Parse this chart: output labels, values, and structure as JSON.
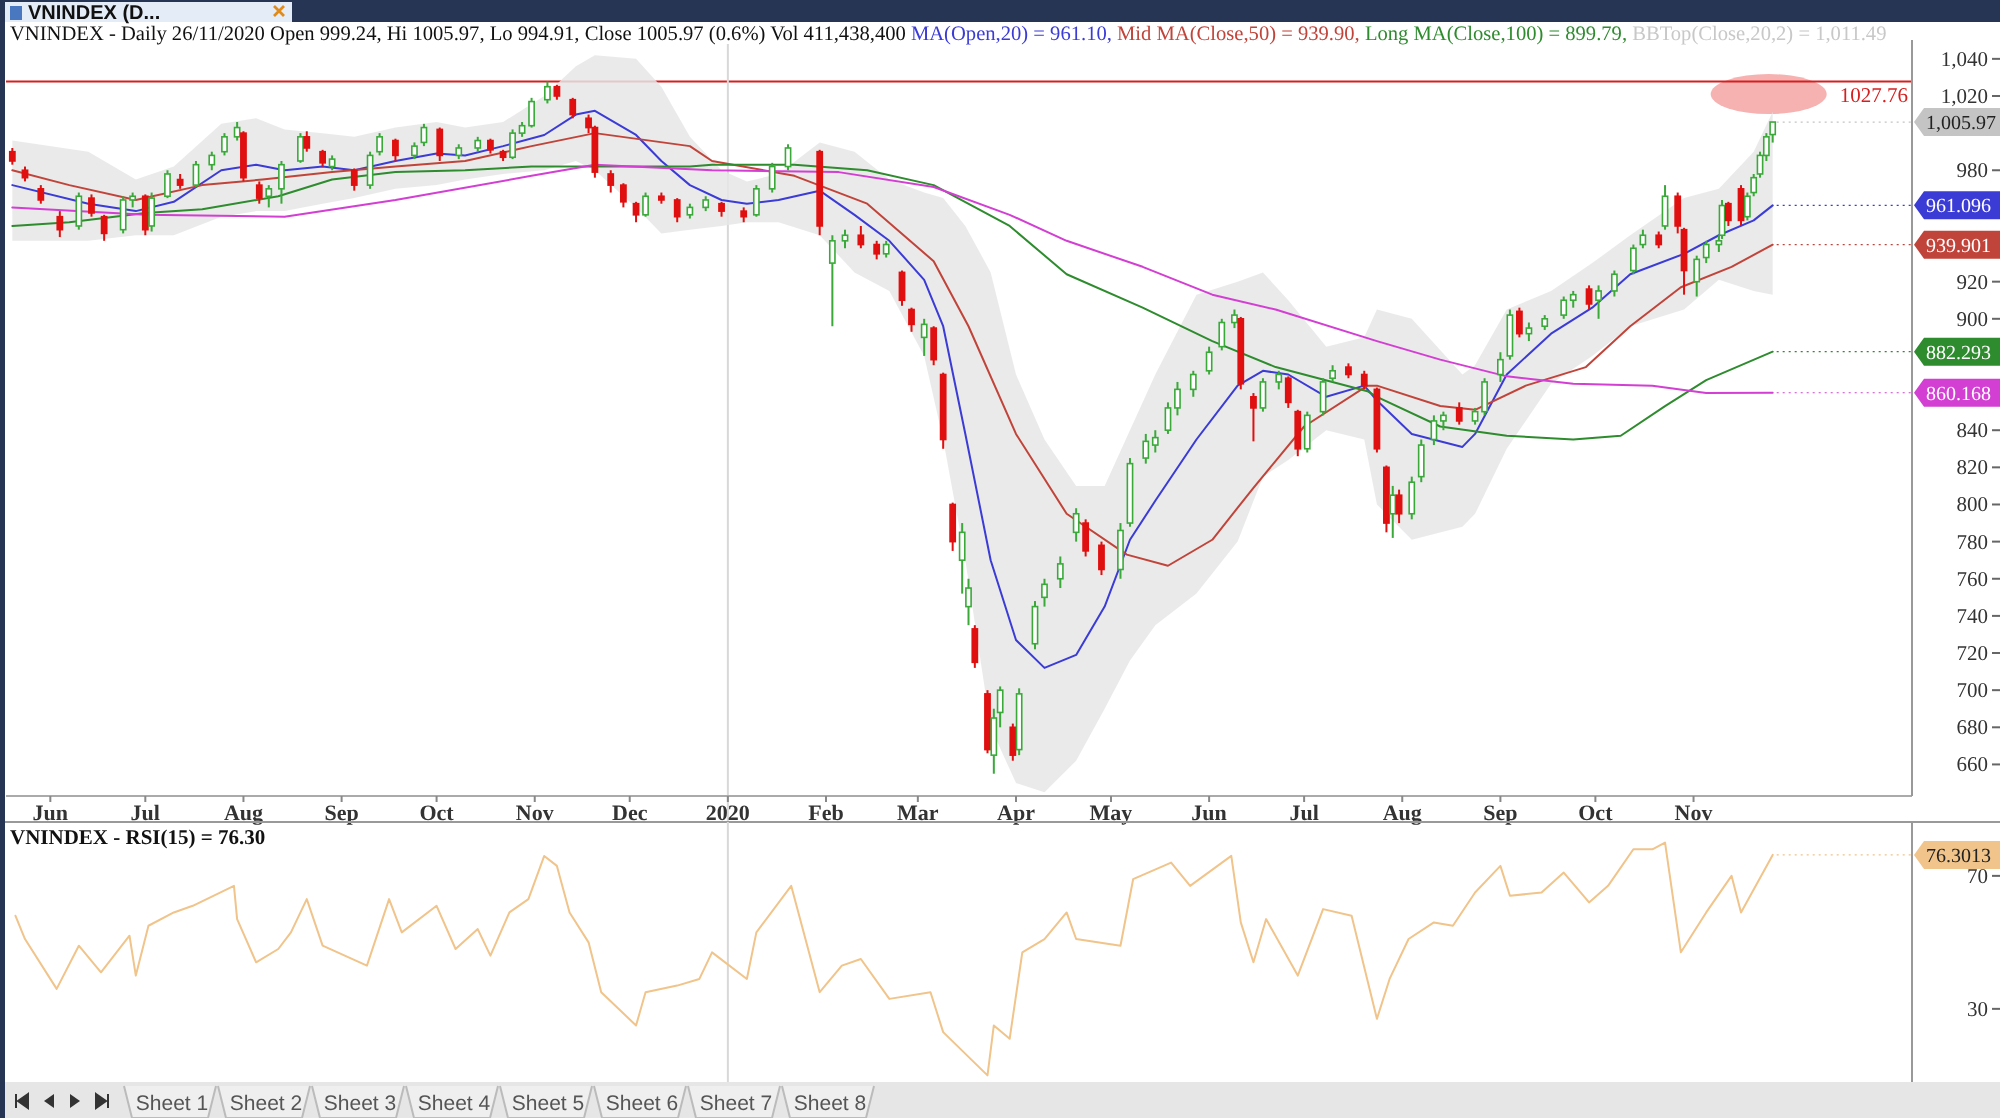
{
  "chart_data": [
    {
      "type": "candlestick",
      "title": "VNINDEX - Daily 26/11/2020 Open 999.24, Hi 1005.97, Lo 994.91, Close 1005.97 (0.6%) Vol 411,438,400",
      "legend": "top",
      "xlim": [
        "2019-05-18",
        "2021-01-09"
      ],
      "ylim": [
        643,
        1048
      ],
      "xticks": [
        {
          "value": "2019-06-01",
          "label": "Jun"
        },
        {
          "value": "2019-07-01",
          "label": "Jul"
        },
        {
          "value": "2019-08-01",
          "label": "Aug"
        },
        {
          "value": "2019-09-01",
          "label": "Sep"
        },
        {
          "value": "2019-10-01",
          "label": "Oct"
        },
        {
          "value": "2019-11-01",
          "label": "Nov"
        },
        {
          "value": "2019-12-01",
          "label": "Dec"
        },
        {
          "value": "2020-01-01",
          "label": "2020"
        },
        {
          "value": "2020-02-01",
          "label": "Feb"
        },
        {
          "value": "2020-03-01",
          "label": "Mar"
        },
        {
          "value": "2020-04-01",
          "label": "Apr"
        },
        {
          "value": "2020-05-01",
          "label": "May"
        },
        {
          "value": "2020-06-01",
          "label": "Jun"
        },
        {
          "value": "2020-07-01",
          "label": "Jul"
        },
        {
          "value": "2020-08-01",
          "label": "Aug"
        },
        {
          "value": "2020-09-01",
          "label": "Sep"
        },
        {
          "value": "2020-10-01",
          "label": "Oct"
        },
        {
          "value": "2020-11-01",
          "label": "Nov"
        }
      ],
      "yticks": [
        660,
        680,
        700,
        720,
        740,
        760,
        780,
        800,
        820,
        840,
        900,
        920,
        980,
        {
          "value": 1020,
          "label": "1,020"
        },
        {
          "value": 1040,
          "label": "1,040"
        }
      ],
      "ref_lines": [
        {
          "axis": "y",
          "value": 1027.76,
          "label": "1027.76",
          "color": "#d62020"
        },
        {
          "axis": "x",
          "value": "2020-01-01",
          "color": "#d8d8d8"
        }
      ],
      "annotations": [
        "VNINDEX (D...",
        "BBTop(Close,20,2) = 1,011.49",
        {
          "text": "1,005.97",
          "x": "2020-11-26",
          "y": 1005.97
        }
      ],
      "x": [
        "2019-05-20",
        "2019-05-24",
        "2019-05-29",
        "2019-06-04",
        "2019-06-10",
        "2019-06-14",
        "2019-06-18",
        "2019-06-24",
        "2019-06-27",
        "2019-07-01",
        "2019-07-03",
        "2019-07-08",
        "2019-07-12",
        "2019-07-17",
        "2019-07-22",
        "2019-07-26",
        "2019-07-30",
        "2019-08-01",
        "2019-08-06",
        "2019-08-09",
        "2019-08-13",
        "2019-08-19",
        "2019-08-21",
        "2019-08-26",
        "2019-08-29",
        "2019-09-05",
        "2019-09-10",
        "2019-09-13",
        "2019-09-18",
        "2019-09-24",
        "2019-09-27",
        "2019-10-02",
        "2019-10-08",
        "2019-10-14",
        "2019-10-18",
        "2019-10-22",
        "2019-10-25",
        "2019-10-28",
        "2019-10-31",
        "2019-11-05",
        "2019-11-08",
        "2019-11-13",
        "2019-11-18",
        "2019-11-20",
        "2019-11-25",
        "2019-11-29",
        "2019-12-03",
        "2019-12-06",
        "2019-12-11",
        "2019-12-16",
        "2019-12-20",
        "2019-12-25",
        "2019-12-30",
        "2020-01-06",
        "2020-01-10",
        "2020-01-15",
        "2020-01-20",
        "2020-01-30",
        "2020-02-03",
        "2020-02-07",
        "2020-02-12",
        "2020-02-17",
        "2020-02-20",
        "2020-02-25",
        "2020-02-28",
        "2020-03-03",
        "2020-03-06",
        "2020-03-09",
        "2020-03-12",
        "2020-03-15",
        "2020-03-17",
        "2020-03-19",
        "2020-03-23",
        "2020-03-25",
        "2020-03-27",
        "2020-03-31",
        "2020-04-02",
        "2020-04-07",
        "2020-04-10",
        "2020-04-15",
        "2020-04-20",
        "2020-04-23",
        "2020-04-28",
        "2020-05-04",
        "2020-05-07",
        "2020-05-12",
        "2020-05-15",
        "2020-05-19",
        "2020-05-22",
        "2020-05-27",
        "2020-06-01",
        "2020-06-05",
        "2020-06-09",
        "2020-06-11",
        "2020-06-15",
        "2020-06-18",
        "2020-06-23",
        "2020-06-26",
        "2020-06-29",
        "2020-07-02",
        "2020-07-07",
        "2020-07-10",
        "2020-07-15",
        "2020-07-20",
        "2020-07-24",
        "2020-07-27",
        "2020-07-29",
        "2020-07-31",
        "2020-08-04",
        "2020-08-07",
        "2020-08-11",
        "2020-08-14",
        "2020-08-19",
        "2020-08-24",
        "2020-08-27",
        "2020-09-01",
        "2020-09-04",
        "2020-09-07",
        "2020-09-10",
        "2020-09-15",
        "2020-09-21",
        "2020-09-24",
        "2020-09-29",
        "2020-10-02",
        "2020-10-07",
        "2020-10-13",
        "2020-10-16",
        "2020-10-21",
        "2020-10-23",
        "2020-10-27",
        "2020-10-29",
        "2020-11-02",
        "2020-11-05",
        "2020-11-09",
        "2020-11-10",
        "2020-11-12",
        "2020-11-16",
        "2020-11-18",
        "2020-11-20",
        "2020-11-22",
        "2020-11-24",
        "2020-11-26"
      ],
      "ohlc": [
        [
          990,
          992,
          983,
          985
        ],
        [
          980,
          982,
          974,
          976
        ],
        [
          970,
          972,
          962,
          964
        ],
        [
          955,
          958,
          944,
          948
        ],
        [
          950,
          968,
          948,
          966
        ],
        [
          965,
          967,
          955,
          957
        ],
        [
          955,
          956,
          942,
          946
        ],
        [
          948,
          966,
          946,
          964
        ],
        [
          964,
          968,
          960,
          966
        ],
        [
          966,
          967,
          945,
          948
        ],
        [
          950,
          968,
          947,
          965
        ],
        [
          966,
          980,
          965,
          978
        ],
        [
          975,
          978,
          970,
          972
        ],
        [
          972,
          985,
          971,
          983
        ],
        [
          983,
          990,
          980,
          988
        ],
        [
          990,
          1000,
          988,
          998
        ],
        [
          998,
          1006,
          996,
          1003
        ],
        [
          1000,
          1001,
          974,
          976
        ],
        [
          972,
          974,
          962,
          965
        ],
        [
          966,
          972,
          960,
          970
        ],
        [
          970,
          985,
          962,
          983
        ],
        [
          985,
          1000,
          984,
          998
        ],
        [
          998,
          1001,
          990,
          992
        ],
        [
          990,
          991,
          982,
          984
        ],
        [
          982,
          988,
          980,
          986
        ],
        [
          980,
          981,
          969,
          972
        ],
        [
          972,
          990,
          970,
          988
        ],
        [
          990,
          1000,
          988,
          998
        ],
        [
          996,
          997,
          985,
          988
        ],
        [
          988,
          995,
          986,
          993
        ],
        [
          995,
          1005,
          993,
          1003
        ],
        [
          1002,
          1003,
          985,
          988
        ],
        [
          988,
          994,
          986,
          992
        ],
        [
          992,
          998,
          990,
          996
        ],
        [
          996,
          997,
          989,
          991
        ],
        [
          990,
          991,
          985,
          987
        ],
        [
          987,
          1002,
          986,
          1000
        ],
        [
          1000,
          1006,
          998,
          1004
        ],
        [
          1004,
          1019,
          1003,
          1017
        ],
        [
          1018,
          1027.76,
          1016,
          1025
        ],
        [
          1025,
          1026,
          1018,
          1020
        ],
        [
          1018,
          1019,
          1008,
          1010
        ],
        [
          1008,
          1010,
          1000,
          1003
        ],
        [
          1003,
          1004,
          976,
          979
        ],
        [
          978,
          980,
          968,
          972
        ],
        [
          972,
          973,
          960,
          963
        ],
        [
          962,
          963,
          952,
          956
        ],
        [
          956,
          968,
          955,
          966
        ],
        [
          966,
          968,
          962,
          964
        ],
        [
          964,
          965,
          952,
          955
        ],
        [
          956,
          962,
          954,
          960
        ],
        [
          960,
          966,
          958,
          964
        ],
        [
          962,
          963,
          955,
          958
        ],
        [
          958,
          960,
          952,
          955
        ],
        [
          956,
          972,
          955,
          970
        ],
        [
          970,
          984,
          968,
          982
        ],
        [
          982,
          994,
          980,
          992
        ],
        [
          990,
          991,
          945,
          950
        ],
        [
          930,
          945,
          896,
          942
        ],
        [
          942,
          948,
          938,
          945
        ],
        [
          945,
          950,
          938,
          940
        ],
        [
          940,
          942,
          932,
          935
        ],
        [
          935,
          942,
          933,
          940
        ],
        [
          925,
          926,
          907,
          910
        ],
        [
          905,
          906,
          893,
          897
        ],
        [
          890,
          900,
          880,
          897
        ],
        [
          895,
          896,
          875,
          878
        ],
        [
          870,
          871,
          830,
          835
        ],
        [
          800,
          801,
          775,
          780
        ],
        [
          770,
          790,
          752,
          785
        ],
        [
          745,
          760,
          735,
          755
        ],
        [
          733,
          735,
          712,
          715
        ],
        [
          698,
          700,
          666,
          668
        ],
        [
          665,
          690,
          655,
          685
        ],
        [
          688,
          702,
          680,
          700
        ],
        [
          680,
          682,
          662,
          665
        ],
        [
          668,
          701,
          665,
          698
        ],
        [
          725,
          748,
          722,
          745
        ],
        [
          750,
          760,
          745,
          757
        ],
        [
          760,
          772,
          755,
          768
        ],
        [
          785,
          798,
          780,
          795
        ],
        [
          790,
          792,
          772,
          775
        ],
        [
          778,
          780,
          762,
          765
        ],
        [
          765,
          790,
          760,
          786
        ],
        [
          790,
          825,
          788,
          822
        ],
        [
          825,
          838,
          822,
          834
        ],
        [
          832,
          840,
          828,
          836
        ],
        [
          840,
          855,
          838,
          852
        ],
        [
          852,
          866,
          848,
          862
        ],
        [
          862,
          872,
          858,
          870
        ],
        [
          872,
          885,
          870,
          882
        ],
        [
          885,
          900,
          883,
          898
        ],
        [
          898,
          905,
          895,
          902
        ],
        [
          900,
          901,
          862,
          865
        ],
        [
          858,
          860,
          834,
          852
        ],
        [
          852,
          868,
          850,
          866
        ],
        [
          866,
          872,
          862,
          870
        ],
        [
          868,
          869,
          852,
          855
        ],
        [
          850,
          851,
          826,
          830
        ],
        [
          830,
          850,
          828,
          848
        ],
        [
          850,
          868,
          848,
          866
        ],
        [
          868,
          875,
          866,
          872
        ],
        [
          874,
          876,
          868,
          870
        ],
        [
          870,
          872,
          862,
          864
        ],
        [
          862,
          863,
          828,
          830
        ],
        [
          820,
          821,
          785,
          790
        ],
        [
          795,
          810,
          782,
          805
        ],
        [
          805,
          808,
          790,
          795
        ],
        [
          795,
          815,
          792,
          812
        ],
        [
          815,
          835,
          812,
          832
        ],
        [
          835,
          848,
          832,
          845
        ],
        [
          845,
          850,
          840,
          848
        ],
        [
          852,
          855,
          843,
          845
        ],
        [
          845,
          852,
          843,
          850
        ],
        [
          850,
          868,
          848,
          866
        ],
        [
          870,
          882,
          866,
          878
        ],
        [
          880,
          905,
          878,
          902
        ],
        [
          904,
          906,
          890,
          892
        ],
        [
          892,
          898,
          888,
          895
        ],
        [
          896,
          902,
          894,
          900
        ],
        [
          902,
          912,
          900,
          910
        ],
        [
          910,
          915,
          906,
          913
        ],
        [
          916,
          918,
          905,
          908
        ],
        [
          910,
          918,
          900,
          915
        ],
        [
          915,
          926,
          912,
          924
        ],
        [
          926,
          940,
          924,
          938
        ],
        [
          940,
          948,
          938,
          945
        ],
        [
          945,
          947,
          938,
          940
        ],
        [
          950,
          972,
          948,
          966
        ],
        [
          966,
          968,
          946,
          950
        ],
        [
          948,
          949,
          913,
          926
        ],
        [
          920,
          934,
          912,
          932
        ],
        [
          933,
          942,
          930,
          940
        ],
        [
          940,
          945,
          936,
          942
        ],
        [
          945,
          964,
          943,
          961
        ],
        [
          962,
          963,
          950,
          953
        ],
        [
          970,
          972,
          950,
          953
        ],
        [
          955,
          968,
          953,
          966
        ],
        [
          968,
          978,
          966,
          976
        ],
        [
          978,
          990,
          976,
          988
        ],
        [
          988,
          1000,
          985,
          998
        ],
        [
          999.24,
          1005.97,
          994.91,
          1005.97
        ]
      ],
      "series": [
        {
          "type": "line",
          "name": "MA(Open,20) = 961.10,",
          "color": "#3b3bd6",
          "x": [
            "2019-05-20",
            "2019-06-13",
            "2019-06-28",
            "2019-07-10",
            "2019-07-25",
            "2019-08-05",
            "2019-08-14",
            "2019-08-26",
            "2019-09-05",
            "2019-09-18",
            "2019-10-01",
            "2019-10-10",
            "2019-10-22",
            "2019-11-04",
            "2019-11-14",
            "2019-11-20",
            "2019-12-03",
            "2019-12-11",
            "2019-12-20",
            "2019-12-30",
            "2020-01-07",
            "2020-01-17",
            "2020-01-30",
            "2020-02-10",
            "2020-02-21",
            "2020-03-03",
            "2020-03-09",
            "2020-03-16",
            "2020-03-24",
            "2020-04-01",
            "2020-04-10",
            "2020-04-20",
            "2020-04-29",
            "2020-05-07",
            "2020-05-15",
            "2020-05-28",
            "2020-06-10",
            "2020-06-18",
            "2020-06-26",
            "2020-07-08",
            "2020-07-20",
            "2020-07-24",
            "2020-08-04",
            "2020-08-20",
            "2020-08-24",
            "2020-09-03",
            "2020-09-17",
            "2020-09-30",
            "2020-10-12",
            "2020-10-29",
            "2020-11-09",
            "2020-11-20",
            "2020-11-26"
          ],
          "values": [
            972,
            962,
            958,
            963,
            980,
            983,
            980,
            982,
            980,
            985,
            989,
            988,
            993,
            999,
            1010,
            1012,
            999,
            985,
            972,
            964,
            962,
            964,
            969,
            956,
            942,
            921,
            896,
            838,
            770,
            727,
            712,
            719,
            745,
            781,
            802,
            835,
            864,
            872,
            870,
            858,
            864,
            856,
            838,
            831,
            838,
            870,
            892,
            906,
            924,
            935,
            945,
            953,
            961.096
          ],
          "lower": [
            942,
            942,
            945,
            945,
            955,
            958,
            958,
            962,
            965,
            970,
            972,
            975,
            978,
            980,
            985,
            980,
            960,
            946,
            948,
            950,
            952,
            952,
            945,
            925,
            915,
            880,
            835,
            770,
            680,
            650,
            645,
            662,
            690,
            716,
            735,
            752,
            780,
            815,
            824,
            840,
            835,
            800,
            781,
            788,
            795,
            830,
            865,
            880,
            896,
            905,
            921,
            915,
            913
          ],
          "upper": [
            996,
            990,
            975,
            982,
            1005,
            1008,
            1002,
            1000,
            998,
            1003,
            1006,
            1003,
            1006,
            1020,
            1036,
            1042,
            1040,
            1025,
            998,
            980,
            974,
            978,
            995,
            990,
            975,
            968,
            965,
            950,
            925,
            870,
            835,
            810,
            810,
            840,
            870,
            913,
            920,
            925,
            910,
            885,
            890,
            905,
            900,
            870,
            875,
            905,
            915,
            930,
            945,
            965,
            970,
            990,
            1011.49
          ],
          "value_labels": [
            null,
            null,
            null,
            null,
            null,
            null,
            null,
            null,
            null,
            null,
            null,
            null,
            null,
            null,
            null,
            null,
            null,
            null,
            null,
            null,
            null,
            null,
            null,
            null,
            null,
            null,
            null,
            null,
            null,
            null,
            null,
            null,
            null,
            null,
            null,
            null,
            null,
            null,
            null,
            null,
            null,
            null,
            null,
            null,
            null,
            null,
            null,
            null,
            null,
            null,
            null,
            null,
            "961.096"
          ]
        },
        {
          "type": "line",
          "name": "Mid MA(Close,50) = 939.90,",
          "color": "#c0443a",
          "x": [
            "2019-05-20",
            "2019-06-07",
            "2019-06-28",
            "2019-07-19",
            "2019-08-07",
            "2019-08-29",
            "2019-09-18",
            "2019-10-10",
            "2019-10-31",
            "2019-11-20",
            "2019-12-20",
            "2019-12-27",
            "2020-01-22",
            "2020-02-14",
            "2020-03-06",
            "2020-03-17",
            "2020-04-01",
            "2020-04-17",
            "2020-05-06",
            "2020-05-19",
            "2020-06-02",
            "2020-06-15",
            "2020-07-01",
            "2020-07-21",
            "2020-07-24",
            "2020-08-13",
            "2020-08-24",
            "2020-09-09",
            "2020-09-28",
            "2020-10-12",
            "2020-10-28",
            "2020-11-13",
            "2020-11-26"
          ],
          "values": [
            980,
            972,
            964,
            972,
            975,
            979,
            982,
            985,
            993,
            1000,
            993,
            985,
            977,
            962,
            931,
            896,
            838,
            795,
            773,
            767,
            781,
            809,
            842,
            864,
            864,
            853,
            851,
            864,
            874,
            896,
            917,
            928,
            939.901
          ],
          "value_labels": [
            null,
            null,
            null,
            null,
            null,
            null,
            null,
            null,
            null,
            null,
            null,
            null,
            null,
            null,
            null,
            null,
            null,
            null,
            null,
            null,
            null,
            null,
            null,
            null,
            null,
            null,
            null,
            null,
            null,
            null,
            null,
            null,
            "939.901"
          ]
        },
        {
          "type": "line",
          "name": "Long MA(Close,100) = 899.79,",
          "color": "#2e8b2e",
          "x": [
            "2019-05-20",
            "2019-06-07",
            "2019-07-01",
            "2019-07-19",
            "2019-08-12",
            "2019-08-29",
            "2019-09-18",
            "2019-10-10",
            "2019-10-31",
            "2019-11-20",
            "2019-12-20",
            "2019-12-27",
            "2020-01-22",
            "2020-02-14",
            "2020-03-06",
            "2020-03-30",
            "2020-04-17",
            "2020-05-11",
            "2020-06-02",
            "2020-06-22",
            "2020-07-21",
            "2020-07-24",
            "2020-08-13",
            "2020-09-03",
            "2020-09-24",
            "2020-10-09",
            "2020-10-23",
            "2020-11-05",
            "2020-11-26"
          ],
          "values": [
            950,
            952,
            957,
            959,
            966,
            975,
            979,
            980,
            982,
            982,
            982,
            983,
            983,
            980,
            972,
            950,
            924,
            906,
            888,
            874,
            861,
            858,
            842,
            837,
            835,
            837,
            853,
            867,
            882.293
          ],
          "value_labels": [
            null,
            null,
            null,
            null,
            null,
            null,
            null,
            null,
            null,
            null,
            null,
            null,
            null,
            null,
            null,
            null,
            null,
            null,
            null,
            null,
            null,
            null,
            null,
            null,
            null,
            null,
            null,
            null,
            "882.293"
          ]
        },
        {
          "type": "line",
          "color": "#d23fd2",
          "x": [
            "2019-05-20",
            "2019-07-01",
            "2019-08-14",
            "2019-09-18",
            "2019-10-31",
            "2019-11-20",
            "2019-12-27",
            "2020-02-05",
            "2020-03-06",
            "2020-03-30",
            "2020-04-17",
            "2020-05-11",
            "2020-06-02",
            "2020-06-22",
            "2020-07-24",
            "2020-08-13",
            "2020-09-03",
            "2020-09-24",
            "2020-10-19",
            "2020-11-05",
            "2020-11-26"
          ],
          "values": [
            960,
            956,
            955,
            964,
            977,
            983,
            980,
            979,
            971,
            956,
            942,
            928,
            913,
            905,
            888,
            878,
            869,
            865,
            864,
            860,
            860.168
          ],
          "value_labels": [
            null,
            null,
            null,
            null,
            null,
            null,
            null,
            null,
            null,
            null,
            null,
            null,
            null,
            null,
            null,
            null,
            null,
            null,
            null,
            null,
            "860.168"
          ]
        }
      ]
    },
    {
      "type": "line",
      "title": "VNINDEX - RSI(15) = 76.30",
      "tick_labels": "y",
      "xlim": [
        "2019-05-18",
        "2021-01-09"
      ],
      "ylim": [
        8,
        85
      ],
      "yticks": [
        30,
        70
      ],
      "ref_lines": [
        {
          "axis": "x",
          "value": "2020-01-01",
          "color": "#d8d8d8"
        }
      ],
      "annotations": [
        "Sheet 1",
        "Sheet 2",
        "Sheet 3",
        "Sheet 4",
        "Sheet 5",
        "Sheet 6",
        "Sheet 7",
        "Sheet 8"
      ],
      "series": [
        {
          "color": "#f0c48a",
          "x": [
            "2019-05-21",
            "2019-05-24",
            "2019-06-03",
            "2019-06-10",
            "2019-06-17",
            "2019-06-26",
            "2019-06-28",
            "2019-07-02",
            "2019-07-10",
            "2019-07-16",
            "2019-07-29",
            "2019-07-30",
            "2019-08-05",
            "2019-08-12",
            "2019-08-16",
            "2019-08-21",
            "2019-08-26",
            "2019-09-09",
            "2019-09-16",
            "2019-09-20",
            "2019-10-01",
            "2019-10-07",
            "2019-10-14",
            "2019-10-18",
            "2019-10-24",
            "2019-10-30",
            "2019-11-04",
            "2019-11-08",
            "2019-11-12",
            "2019-11-18",
            "2019-11-22",
            "2019-12-03",
            "2019-12-06",
            "2019-12-16",
            "2019-12-23",
            "2019-12-27",
            "2020-01-07",
            "2020-01-10",
            "2020-01-21",
            "2020-01-30",
            "2020-02-06",
            "2020-02-12",
            "2020-02-21",
            "2020-03-05",
            "2020-03-09",
            "2020-03-23",
            "2020-03-25",
            "2020-03-30",
            "2020-04-03",
            "2020-04-10",
            "2020-04-17",
            "2020-04-20",
            "2020-05-04",
            "2020-05-08",
            "2020-05-20",
            "2020-05-26",
            "2020-06-08",
            "2020-06-11",
            "2020-06-15",
            "2020-06-19",
            "2020-06-29",
            "2020-07-07",
            "2020-07-16",
            "2020-07-24",
            "2020-07-28",
            "2020-08-03",
            "2020-08-11",
            "2020-08-17",
            "2020-08-24",
            "2020-09-01",
            "2020-09-04",
            "2020-09-14",
            "2020-09-21",
            "2020-09-29",
            "2020-10-05",
            "2020-10-13",
            "2020-10-19",
            "2020-10-23",
            "2020-10-28",
            "2020-11-05",
            "2020-11-13",
            "2020-11-16",
            "2020-11-26"
          ],
          "values": [
            58,
            51,
            36,
            49,
            41,
            52,
            40,
            55,
            59,
            61,
            67,
            57,
            44,
            48,
            53,
            63,
            49,
            43,
            63,
            53,
            61,
            48,
            54,
            46,
            59,
            63,
            76,
            73,
            59,
            50,
            35,
            25,
            35,
            37,
            39,
            47,
            39,
            53,
            67,
            35,
            43,
            45,
            33,
            35,
            23,
            10,
            25,
            21,
            47,
            51,
            59,
            51,
            49,
            69,
            74,
            67,
            76,
            56,
            44,
            57,
            40,
            60,
            58,
            27,
            39,
            51,
            56,
            55,
            65,
            73,
            64,
            65,
            71,
            62,
            67,
            78,
            78,
            80,
            47,
            59,
            70,
            59,
            76.3013
          ],
          "value_labels": [
            null,
            null,
            null,
            null,
            null,
            null,
            null,
            null,
            null,
            null,
            null,
            null,
            null,
            null,
            null,
            null,
            null,
            null,
            null,
            null,
            null,
            null,
            null,
            null,
            null,
            null,
            null,
            null,
            null,
            null,
            null,
            null,
            null,
            null,
            null,
            null,
            null,
            null,
            null,
            null,
            null,
            null,
            null,
            null,
            null,
            null,
            null,
            null,
            null,
            null,
            null,
            null,
            null,
            null,
            null,
            null,
            null,
            null,
            null,
            null,
            null,
            null,
            null,
            null,
            null,
            null,
            null,
            null,
            null,
            null,
            null,
            null,
            null,
            null,
            null,
            null,
            null,
            null,
            null,
            null,
            null,
            null,
            "76.3013"
          ]
        }
      ]
    }
  ]
}
